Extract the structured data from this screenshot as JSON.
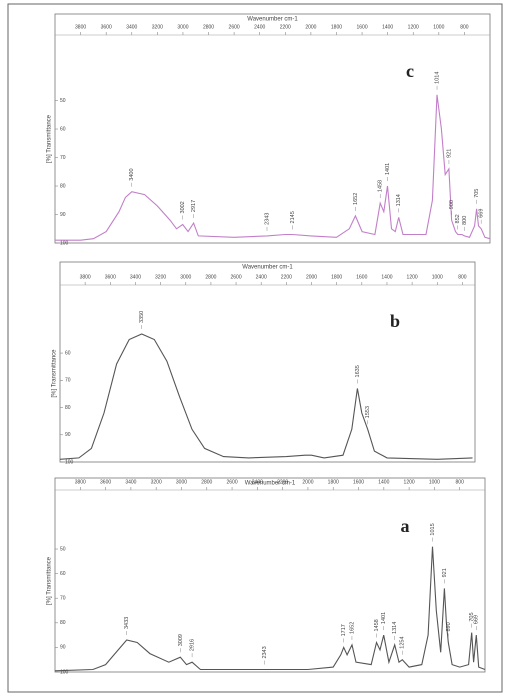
{
  "chart_data": [
    {
      "type": "line",
      "label": "c",
      "x_label": "Wavenumber cm-1",
      "y_label": "[%] Transmittance",
      "xlim": [
        4000,
        600
      ],
      "ylim": [
        100,
        27
      ],
      "xticks": [
        3800,
        3600,
        3400,
        3200,
        3000,
        2800,
        2600,
        2400,
        2200,
        2000,
        1800,
        1600,
        1400,
        1200,
        1000,
        800
      ],
      "yticks": [
        50,
        60,
        70,
        80,
        90,
        100
      ],
      "series": [
        {
          "color": "#c27fc9",
          "x": [
            4000,
            3800,
            3700,
            3600,
            3500,
            3450,
            3400,
            3300,
            3200,
            3100,
            3050,
            3002,
            2960,
            2917,
            2880,
            2600,
            2343,
            2200,
            2145,
            2000,
            1800,
            1700,
            1652,
            1600,
            1500,
            1458,
            1430,
            1401,
            1370,
            1340,
            1314,
            1280,
            1100,
            1050,
            1014,
            980,
            950,
            921,
            905,
            900,
            870,
            852,
            820,
            800,
            760,
            720,
            705,
            690,
            669,
            640,
            600
          ],
          "y": [
            99,
            99,
            98.5,
            96,
            89,
            84,
            82,
            83,
            87,
            92,
            95,
            93.5,
            96,
            93,
            97.5,
            98,
            97.5,
            97,
            97,
            97.5,
            98,
            95,
            90.5,
            96,
            97,
            86,
            89,
            80,
            95,
            96,
            91,
            97,
            97,
            85,
            48,
            60,
            76,
            74,
            88,
            92,
            96,
            97,
            97,
            97.5,
            98,
            94,
            88,
            94,
            95,
            98,
            98.5
          ]
        }
      ],
      "peak_labels": [
        3400,
        3002,
        2917,
        2343,
        2145,
        1652,
        1458,
        1401,
        1314,
        1014,
        921,
        900,
        852,
        800,
        705,
        669
      ]
    },
    {
      "type": "line",
      "label": "b",
      "x_label": "Wavenumber cm-1",
      "y_label": "[%] Transmittance",
      "xlim": [
        4000,
        700
      ],
      "ylim": [
        100,
        35
      ],
      "xticks": [
        3800,
        3600,
        3400,
        3200,
        3000,
        2800,
        2600,
        2400,
        2200,
        2000,
        1800,
        1600,
        1400,
        1200,
        1000,
        800
      ],
      "yticks": [
        60,
        70,
        80,
        90,
        100
      ],
      "series": [
        {
          "color": "#555555",
          "x": [
            4000,
            3850,
            3750,
            3650,
            3550,
            3450,
            3350,
            3250,
            3150,
            3050,
            2950,
            2850,
            2700,
            2500,
            2200,
            2050,
            2000,
            1900,
            1750,
            1680,
            1635,
            1600,
            1553,
            1500,
            1400,
            1000,
            720
          ],
          "y": [
            99,
            98.5,
            95,
            82,
            64,
            55,
            53,
            55,
            63,
            76,
            88,
            95,
            98,
            98.5,
            98,
            97.5,
            97.5,
            98.5,
            97.5,
            88,
            73,
            82,
            88,
            96,
            98.5,
            99,
            98.5
          ]
        }
      ],
      "peak_labels": [
        3350,
        1635,
        1553
      ]
    },
    {
      "type": "line",
      "label": "a",
      "x_label": "Wavenumber cm-1",
      "y_label": "[%] Transmittance",
      "xlim": [
        4000,
        600
      ],
      "ylim": [
        100,
        26
      ],
      "xticks": [
        3800,
        3600,
        3400,
        3200,
        3000,
        2800,
        2600,
        2400,
        2200,
        2000,
        1800,
        1600,
        1400,
        1200,
        1000,
        800
      ],
      "yticks": [
        50,
        60,
        70,
        80,
        90,
        100
      ],
      "series": [
        {
          "color": "#555555",
          "x": [
            4000,
            3700,
            3600,
            3500,
            3433,
            3350,
            3250,
            3100,
            3009,
            2960,
            2916,
            2850,
            2343,
            2000,
            1800,
            1740,
            1717,
            1690,
            1652,
            1620,
            1500,
            1458,
            1430,
            1401,
            1360,
            1314,
            1280,
            1254,
            1200,
            1100,
            1050,
            1015,
            985,
            950,
            921,
            905,
            890,
            860,
            800,
            730,
            705,
            690,
            669,
            650,
            600
          ],
          "y": [
            99.5,
            99,
            97,
            91,
            87,
            88,
            92.5,
            96,
            94,
            97,
            96,
            99,
            99,
            99,
            98,
            93,
            90,
            93,
            89,
            96,
            97,
            88,
            91,
            85,
            96,
            89,
            96,
            95,
            98,
            97,
            85,
            49,
            75,
            92,
            66,
            80,
            88,
            97,
            98,
            97,
            84,
            96,
            85,
            98,
            99
          ]
        }
      ],
      "peak_labels": [
        3433,
        3009,
        2916,
        2343,
        1717,
        1652,
        1458,
        1401,
        1314,
        1254,
        1015,
        921,
        890,
        705,
        669
      ]
    }
  ]
}
